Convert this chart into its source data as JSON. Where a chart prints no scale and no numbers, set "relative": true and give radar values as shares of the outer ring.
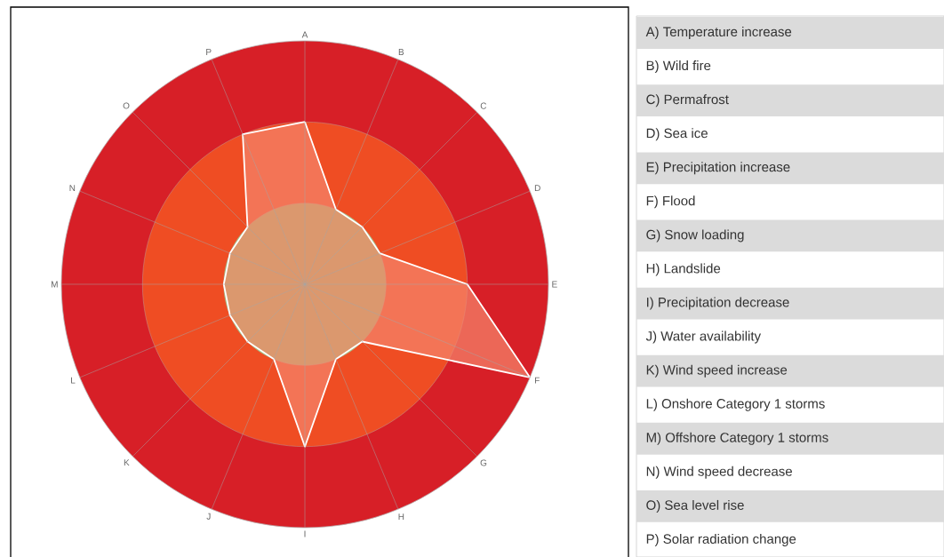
{
  "chart_data": [
    {
      "type": "radar",
      "categories": [
        "A",
        "B",
        "C",
        "D",
        "E",
        "F",
        "G",
        "H",
        "I",
        "J",
        "K",
        "L",
        "M",
        "N",
        "O",
        "P"
      ],
      "relative": true,
      "grid": "x",
      "series": [
        {
          "color": "#f4846b",
          "values": [
            0.667,
            0.333,
            0.333,
            0.333,
            0.667,
            1,
            0.333,
            0.333,
            0.667,
            0.333,
            0.333,
            0.333,
            0.333,
            0.333,
            0.333,
            0.667
          ]
        }
      ]
    },
    {
      "type": "other",
      "annotations": [
        "A) Temperature increase",
        "B) Wild fire",
        "C) Permafrost",
        "D) Sea ice",
        "E) Precipitation increase",
        "F) Flood",
        "G) Snow loading",
        "H) Landslide",
        "I) Precipitation decrease",
        "J) Water availability",
        "K) Wind speed increase",
        "L) Onshore Category 1 storms",
        "M) Offshore Category 1 storms",
        "N) Wind speed decrease",
        "O) Sea level rise",
        "P) Solar radiation change"
      ]
    }
  ]
}
